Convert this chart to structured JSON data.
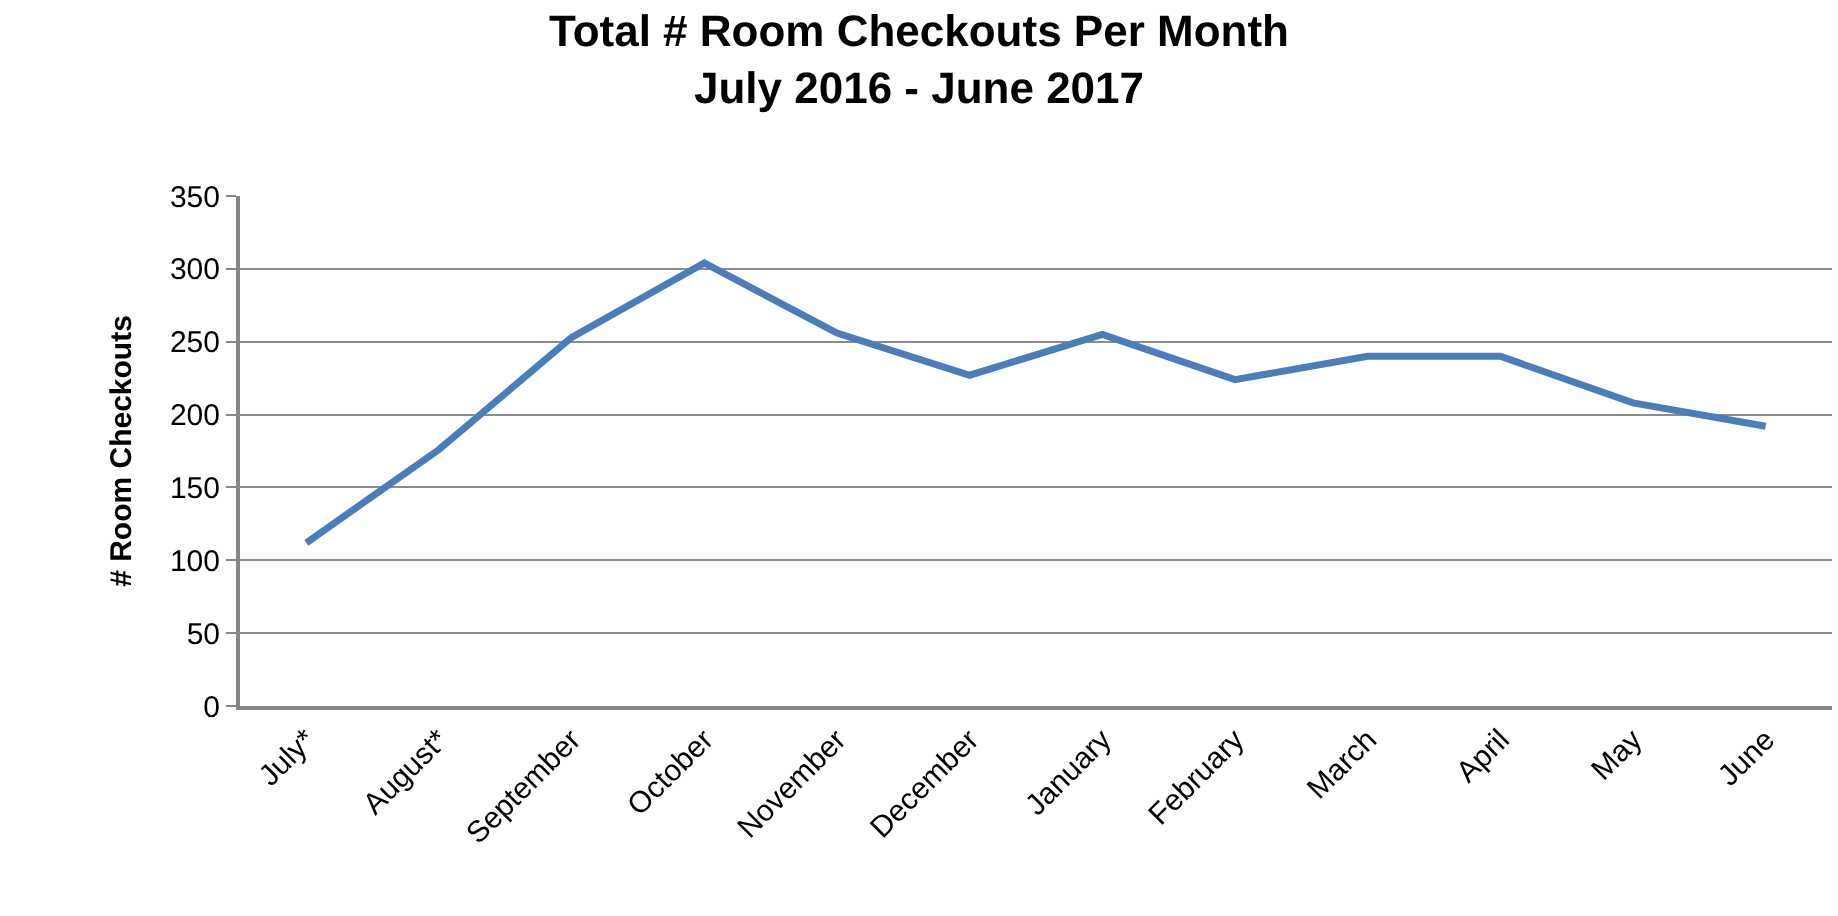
{
  "chart_data": {
    "type": "line",
    "title": "Total # Room Checkouts Per Month\nJuly 2016 - June 2017",
    "ylabel": "# Room Checkouts",
    "categories": [
      "July*",
      "August*",
      "September",
      "October",
      "November",
      "December",
      "January",
      "February",
      "March",
      "April",
      "May",
      "June"
    ],
    "series": [
      {
        "color": "#4a7ebb",
        "values": [
          112,
          176,
          253,
          304,
          256,
          227,
          255,
          224,
          240,
          240,
          208,
          192
        ]
      }
    ],
    "ylim": [
      0,
      350
    ],
    "yticks": [
      0,
      50,
      100,
      150,
      200,
      250,
      300,
      350
    ],
    "grid": "y",
    "marker": "none",
    "line_style": "solid"
  }
}
